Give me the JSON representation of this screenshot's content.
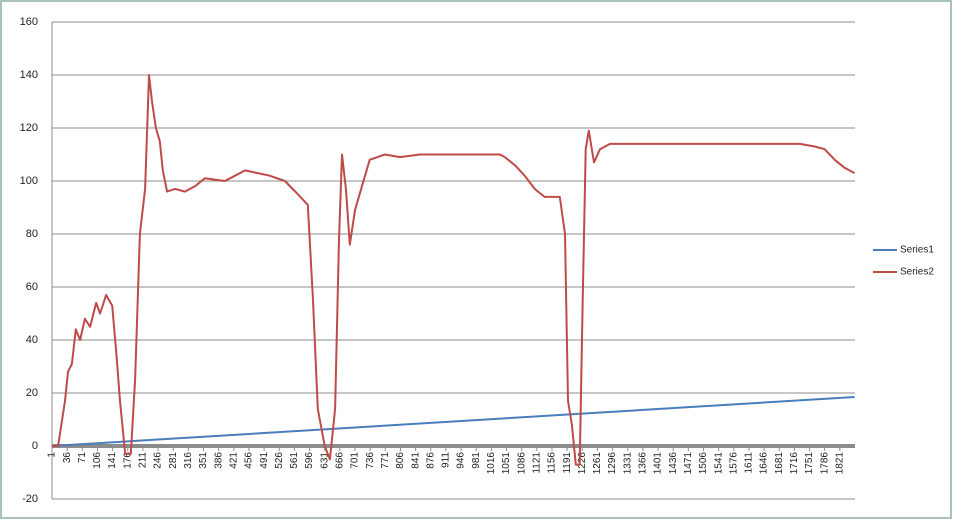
{
  "chart_data": {
    "type": "line",
    "xlim": [
      1,
      1856
    ],
    "ylim": [
      -20,
      160
    ],
    "yticks": [
      -20,
      0,
      20,
      40,
      60,
      80,
      100,
      120,
      140,
      160
    ],
    "xticks": [
      1,
      36,
      71,
      106,
      141,
      176,
      211,
      246,
      281,
      316,
      351,
      386,
      421,
      456,
      491,
      526,
      561,
      596,
      631,
      666,
      701,
      736,
      771,
      806,
      841,
      876,
      911,
      946,
      981,
      1016,
      1051,
      1086,
      1121,
      1156,
      1191,
      1226,
      1261,
      1296,
      1331,
      1366,
      1401,
      1436,
      1471,
      1506,
      1541,
      1576,
      1611,
      1646,
      1681,
      1716,
      1751,
      1786,
      1821
    ],
    "grid": true,
    "legend": "right",
    "series": [
      {
        "name": "Series1",
        "color": "#4a7ebb",
        "x": [
          1,
          1855
        ],
        "values": [
          0,
          18.5
        ]
      },
      {
        "name": "Series2",
        "color": "#be4b48",
        "x": [
          1,
          15,
          31,
          38,
          47,
          56,
          66,
          77,
          89,
          103,
          112,
          126,
          140,
          149,
          158,
          170,
          183,
          193,
          204,
          216,
          225,
          232,
          241,
          250,
          257,
          267,
          285,
          308,
          331,
          354,
          400,
          424,
          447,
          504,
          539,
          569,
          592,
          604,
          615,
          631,
          643,
          655,
          664,
          671,
          680,
          689,
          701,
          717,
          735,
          770,
          805,
          851,
          1036,
          1047,
          1070,
          1093,
          1116,
          1139,
          1174,
          1186,
          1193,
          1202,
          1211,
          1220,
          1227,
          1234,
          1241,
          1253,
          1267,
          1290,
          1359,
          1498,
          1613,
          1729,
          1763,
          1786,
          1809,
          1832,
          1855
        ],
        "values": [
          0,
          0,
          17,
          28,
          31,
          44,
          40,
          48,
          45,
          54,
          50,
          57,
          53,
          36,
          17,
          -3,
          -3,
          25,
          80,
          97,
          140,
          130,
          120,
          115,
          104,
          96,
          97,
          96,
          98,
          101,
          100,
          102,
          104,
          102,
          100,
          95,
          91,
          55,
          14,
          0,
          -5,
          14,
          78,
          110,
          97,
          76,
          89,
          98,
          108,
          110,
          109,
          110,
          110,
          109,
          106,
          102,
          97,
          94,
          94,
          80,
          17,
          8,
          -7,
          -7,
          55,
          112,
          119,
          107,
          112,
          114,
          114,
          114,
          114,
          114,
          113,
          112,
          108,
          105,
          103
        ]
      }
    ]
  }
}
